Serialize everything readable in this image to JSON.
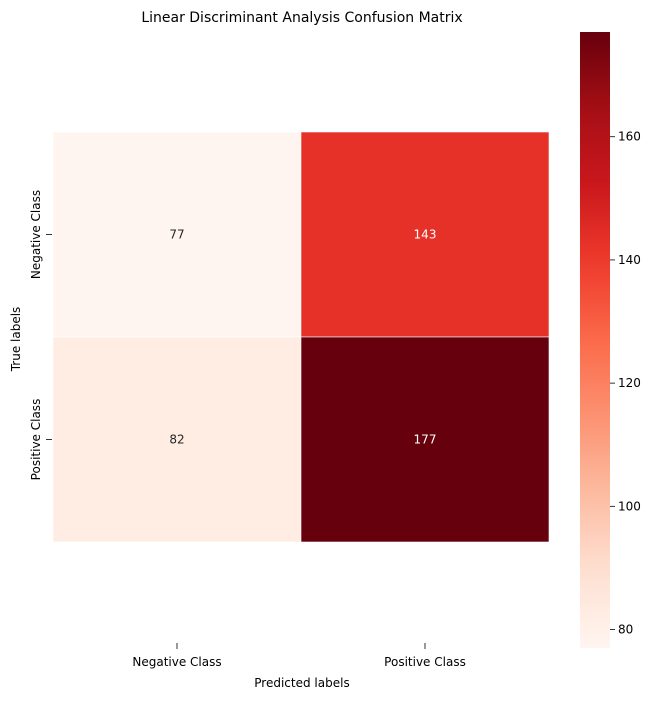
{
  "chart_data": {
    "type": "heatmap",
    "title": "Linear Discriminant Analysis Confusion Matrix",
    "xlabel": "Predicted labels",
    "ylabel": "True labels",
    "x_categories": [
      "Negative Class",
      "Positive Class"
    ],
    "y_categories": [
      "Negative Class",
      "Positive Class"
    ],
    "values": [
      [
        77,
        143
      ],
      [
        82,
        177
      ]
    ],
    "colormap": "Reds",
    "colorbar": {
      "range": [
        77,
        177
      ],
      "ticks": [
        80,
        100,
        120,
        140,
        160
      ]
    },
    "grid": false
  }
}
